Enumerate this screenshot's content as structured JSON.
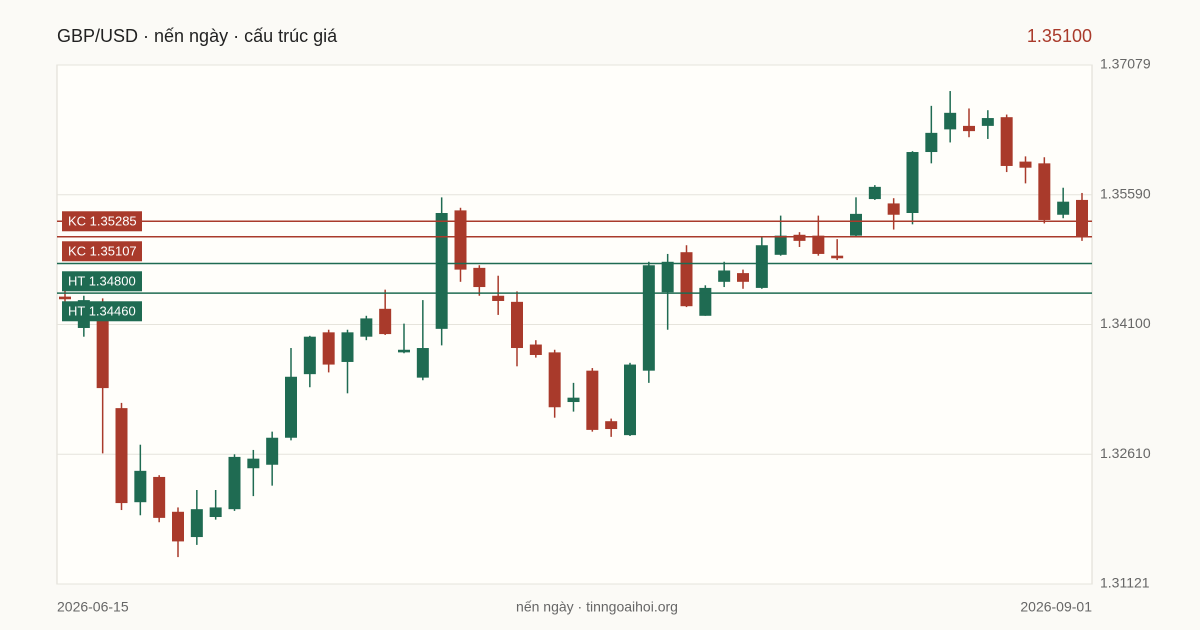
{
  "chart_data": {
    "type": "candlestick",
    "title": "GBP/USD · nến ngày · cấu trúc giá",
    "last_price": "1.35100",
    "footer": "nến ngày · tinngoaihoi.org",
    "x_labels": [
      "2026-06-15",
      "2026-09-01"
    ],
    "up_color": "#1f6b52",
    "down_color": "#a93a2b",
    "open": [
      1.3442,
      1.3406,
      1.3436,
      1.3314,
      1.3206,
      1.3235,
      1.3195,
      1.3166,
      1.3189,
      1.3198,
      1.3245,
      1.3249,
      1.328,
      1.3353,
      1.3401,
      1.3367,
      1.3396,
      1.3428,
      1.3378,
      1.3349,
      1.3405,
      1.3541,
      1.3475,
      1.3443,
      1.3436,
      1.3387,
      1.3378,
      1.3321,
      1.3357,
      1.3299,
      1.3283,
      1.3357,
      1.3447,
      1.3493,
      1.342,
      1.3459,
      1.3469,
      1.3452,
      1.349,
      1.3513,
      1.3512,
      1.3489,
      1.3512,
      1.3554,
      1.3549,
      1.3538,
      1.3608,
      1.3634,
      1.3638,
      1.3638,
      1.3648,
      1.3597,
      1.3595,
      1.3536,
      1.3553
    ],
    "high": [
      1.345,
      1.3443,
      1.344,
      1.332,
      1.3272,
      1.3237,
      1.32,
      1.322,
      1.322,
      1.3261,
      1.3266,
      1.3287,
      1.3383,
      1.3397,
      1.3404,
      1.3404,
      1.342,
      1.345,
      1.3411,
      1.3438,
      1.3556,
      1.3544,
      1.3478,
      1.3466,
      1.3448,
      1.3392,
      1.3381,
      1.3343,
      1.336,
      1.3302,
      1.3366,
      1.3482,
      1.3491,
      1.3501,
      1.3455,
      1.3482,
      1.3473,
      1.351,
      1.3535,
      1.3516,
      1.3535,
      1.3508,
      1.3556,
      1.357,
      1.3555,
      1.3609,
      1.3661,
      1.3678,
      1.3658,
      1.3656,
      1.3651,
      1.3603,
      1.3602,
      1.3567,
      1.3561
    ],
    "low": [
      1.3432,
      1.3396,
      1.3262,
      1.3197,
      1.3191,
      1.3183,
      1.3143,
      1.3157,
      1.3186,
      1.3196,
      1.3213,
      1.3225,
      1.3277,
      1.3338,
      1.3355,
      1.3331,
      1.3392,
      1.3398,
      1.3377,
      1.3346,
      1.3386,
      1.3459,
      1.3443,
      1.3421,
      1.3362,
      1.3372,
      1.3303,
      1.331,
      1.3287,
      1.3281,
      1.3282,
      1.3343,
      1.3404,
      1.343,
      1.342,
      1.3453,
      1.3451,
      1.3451,
      1.3489,
      1.3499,
      1.3489,
      1.3484,
      1.3511,
      1.3553,
      1.3519,
      1.3525,
      1.3595,
      1.3619,
      1.3625,
      1.3623,
      1.3585,
      1.3572,
      1.3526,
      1.3532,
      1.3506
    ],
    "close": [
      1.3439,
      1.3438,
      1.3337,
      1.3205,
      1.3242,
      1.3188,
      1.3161,
      1.3198,
      1.32,
      1.3258,
      1.3256,
      1.328,
      1.335,
      1.3396,
      1.3364,
      1.3401,
      1.3417,
      1.3399,
      1.3381,
      1.3383,
      1.3538,
      1.3473,
      1.3453,
      1.3437,
      1.3383,
      1.3375,
      1.3315,
      1.3326,
      1.3289,
      1.329,
      1.3364,
      1.3478,
      1.3482,
      1.3431,
      1.3452,
      1.3472,
      1.3459,
      1.3501,
      1.3512,
      1.3506,
      1.3491,
      1.3486,
      1.3537,
      1.3568,
      1.3536,
      1.3608,
      1.363,
      1.3653,
      1.3632,
      1.3647,
      1.3592,
      1.359,
      1.353,
      1.3551,
      1.351
    ],
    "ylim": [
      1.31121,
      1.37079
    ],
    "yticks": [
      1.31121,
      {
        "value": 1.3261,
        "label": "1.32610"
      },
      {
        "value": 1.341,
        "label": "1.34100"
      },
      {
        "value": 1.3559,
        "label": "1.35590"
      },
      1.37079
    ],
    "grid": true,
    "levels": [
      {
        "label": "KC 1.35285",
        "value": 1.35285,
        "color": "#a93a2b"
      },
      {
        "label": "KC 1.35107",
        "value": 1.35107,
        "color": "#a93a2b"
      },
      {
        "label": "HT 1.34800",
        "value": 1.348,
        "color": "#1f6b52"
      },
      {
        "label": "HT 1.34460",
        "value": 1.3446,
        "color": "#1f6b52"
      }
    ]
  }
}
